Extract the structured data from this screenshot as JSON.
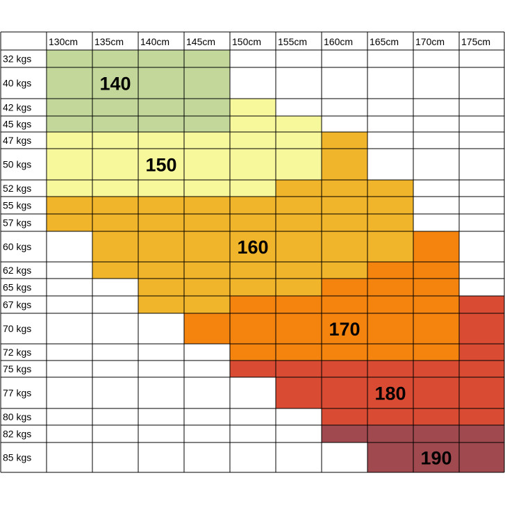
{
  "chart_data": {
    "type": "table",
    "title": "",
    "columns": [
      "130cm",
      "135cm",
      "140cm",
      "145cm",
      "150cm",
      "155cm",
      "160cm",
      "165cm",
      "170cm",
      "175cm"
    ],
    "rows": [
      "32 kgs",
      "40 kgs",
      "42 kgs",
      "45 kgs",
      "47 kgs",
      "50 kgs",
      "52 kgs",
      "55 kgs",
      "57 kgs",
      "60 kgs",
      "62 kgs",
      "65 kgs",
      "67 kgs",
      "70 kgs",
      "72 kgs",
      "75 kgs",
      "77 kgs",
      "80 kgs",
      "82 kgs",
      "85 kgs"
    ],
    "zones": [
      {
        "size": "140",
        "color": "#c4d79b"
      },
      {
        "size": "150",
        "color": "#f7f79b"
      },
      {
        "size": "160",
        "color": "#f0b52a"
      },
      {
        "size": "170",
        "color": "#f5840f"
      },
      {
        "size": "180",
        "color": "#d94b33"
      },
      {
        "size": "190",
        "color": "#a04a50"
      }
    ],
    "grid": [
      [
        "140",
        "140",
        "140",
        "140",
        "",
        "",
        "",
        "",
        "",
        ""
      ],
      [
        "140",
        "140",
        "140",
        "140",
        "",
        "",
        "",
        "",
        "",
        ""
      ],
      [
        "140",
        "140",
        "140",
        "140",
        "150",
        "",
        "",
        "",
        "",
        ""
      ],
      [
        "140",
        "140",
        "140",
        "140",
        "150",
        "150",
        "",
        "",
        "",
        ""
      ],
      [
        "150",
        "150",
        "150",
        "150",
        "150",
        "150",
        "160",
        "",
        "",
        ""
      ],
      [
        "150",
        "150",
        "150",
        "150",
        "150",
        "150",
        "160",
        "",
        "",
        ""
      ],
      [
        "150",
        "150",
        "150",
        "150",
        "150",
        "160",
        "160",
        "160",
        "",
        ""
      ],
      [
        "160",
        "160",
        "160",
        "160",
        "160",
        "160",
        "160",
        "160",
        "",
        ""
      ],
      [
        "160",
        "160",
        "160",
        "160",
        "160",
        "160",
        "160",
        "160",
        "",
        ""
      ],
      [
        "",
        "160",
        "160",
        "160",
        "160",
        "160",
        "160",
        "160",
        "170",
        ""
      ],
      [
        "",
        "160",
        "160",
        "160",
        "160",
        "160",
        "160",
        "170",
        "170",
        ""
      ],
      [
        "",
        "",
        "160",
        "160",
        "160",
        "160",
        "170",
        "170",
        "170",
        ""
      ],
      [
        "",
        "",
        "160",
        "160",
        "170",
        "170",
        "170",
        "170",
        "170",
        "180"
      ],
      [
        "",
        "",
        "",
        "170",
        "170",
        "170",
        "170",
        "170",
        "170",
        "180"
      ],
      [
        "",
        "",
        "",
        "",
        "170",
        "170",
        "170",
        "170",
        "170",
        "180"
      ],
      [
        "",
        "",
        "",
        "",
        "180",
        "180",
        "180",
        "180",
        "180",
        "180"
      ],
      [
        "",
        "",
        "",
        "",
        "",
        "180",
        "180",
        "180",
        "180",
        "180"
      ],
      [
        "",
        "",
        "",
        "",
        "",
        "",
        "180",
        "180",
        "180",
        "180"
      ],
      [
        "",
        "",
        "",
        "",
        "",
        "",
        "190",
        "190",
        "190",
        "190"
      ],
      [
        "",
        "",
        "",
        "",
        "",
        "",
        "",
        "190",
        "190",
        "190"
      ]
    ],
    "labels": [
      {
        "text": "140",
        "row": 1,
        "col": 1
      },
      {
        "text": "150",
        "row": 5,
        "col": 2
      },
      {
        "text": "160",
        "row": 9,
        "col": 4
      },
      {
        "text": "170",
        "row": 13,
        "col": 6
      },
      {
        "text": "180",
        "row": 16,
        "col": 7
      },
      {
        "text": "190",
        "row": 19,
        "col": 8
      }
    ]
  }
}
